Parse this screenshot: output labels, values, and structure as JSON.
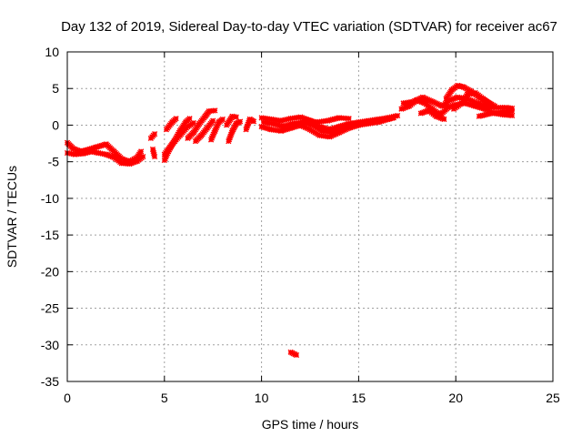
{
  "chart_data": {
    "type": "scatter",
    "title": "Day 132 of 2019, Sidereal Day-to-day VTEC variation (SDTVAR) for receiver ac67",
    "xlabel": "GPS time / hours",
    "ylabel": "SDTVAR / TECUs",
    "xlim": [
      0,
      25
    ],
    "ylim": [
      -35,
      10
    ],
    "xticks": [
      0,
      5,
      10,
      15,
      20,
      25
    ],
    "yticks": [
      -35,
      -30,
      -25,
      -20,
      -15,
      -10,
      -5,
      0,
      5,
      10
    ],
    "grid": true,
    "marker_color": "#ff0000",
    "series": [
      {
        "name": "SDTVAR",
        "color": "#ff0000",
        "tracks": [
          [
            [
              0.0,
              -2.4
            ],
            [
              0.3,
              -3.2
            ],
            [
              0.7,
              -3.6
            ],
            [
              1.0,
              -3.4
            ],
            [
              1.5,
              -3.0
            ],
            [
              2.0,
              -2.6
            ],
            [
              2.4,
              -3.6
            ],
            [
              2.8,
              -4.6
            ],
            [
              3.2,
              -5.0
            ],
            [
              3.6,
              -4.4
            ],
            [
              3.8,
              -3.6
            ]
          ],
          [
            [
              0.0,
              -3.8
            ],
            [
              0.4,
              -4.0
            ],
            [
              0.8,
              -3.9
            ],
            [
              1.2,
              -3.6
            ],
            [
              1.6,
              -3.8
            ],
            [
              2.0,
              -4.0
            ],
            [
              2.4,
              -4.4
            ],
            [
              2.8,
              -5.2
            ],
            [
              3.2,
              -5.3
            ],
            [
              3.6,
              -4.9
            ],
            [
              3.9,
              -4.3
            ]
          ],
          [
            [
              4.3,
              -1.8
            ],
            [
              4.5,
              -1.2
            ]
          ],
          [
            [
              4.4,
              -3.3
            ],
            [
              4.5,
              -4.3
            ]
          ],
          [
            [
              5.0,
              -4.8
            ],
            [
              5.2,
              -3.6
            ],
            [
              5.5,
              -2.2
            ],
            [
              5.8,
              -0.8
            ],
            [
              6.1,
              0.4
            ],
            [
              6.3,
              0.9
            ]
          ],
          [
            [
              5.0,
              -4.0
            ],
            [
              5.4,
              -2.6
            ],
            [
              5.8,
              -1.4
            ],
            [
              6.2,
              -0.2
            ],
            [
              6.5,
              0.3
            ]
          ],
          [
            [
              5.1,
              -0.6
            ],
            [
              5.4,
              0.4
            ],
            [
              5.6,
              0.9
            ]
          ],
          [
            [
              6.2,
              -1.8
            ],
            [
              6.5,
              -1.0
            ],
            [
              6.8,
              0.2
            ],
            [
              7.1,
              1.2
            ],
            [
              7.3,
              1.9
            ],
            [
              7.6,
              2.0
            ]
          ],
          [
            [
              6.6,
              -2.2
            ],
            [
              6.9,
              -1.4
            ],
            [
              7.2,
              -0.4
            ],
            [
              7.5,
              0.6
            ]
          ],
          [
            [
              7.4,
              -2.0
            ],
            [
              7.6,
              -0.8
            ],
            [
              7.8,
              0.4
            ],
            [
              8.0,
              0.8
            ]
          ],
          [
            [
              8.2,
              0.0
            ],
            [
              8.5,
              1.2
            ],
            [
              8.7,
              1.1
            ]
          ],
          [
            [
              8.3,
              -2.2
            ],
            [
              8.5,
              -0.8
            ],
            [
              8.7,
              0.2
            ],
            [
              8.9,
              0.5
            ]
          ],
          [
            [
              9.2,
              -0.6
            ],
            [
              9.4,
              0.8
            ],
            [
              9.6,
              0.5
            ]
          ],
          [
            [
              10.0,
              1.0
            ],
            [
              10.5,
              0.8
            ],
            [
              11.0,
              0.6
            ],
            [
              11.5,
              0.9
            ],
            [
              12.0,
              1.1
            ],
            [
              12.5,
              0.6
            ],
            [
              13.0,
              -0.2
            ],
            [
              13.5,
              -0.6
            ],
            [
              14.0,
              -0.2
            ],
            [
              14.5,
              0.2
            ],
            [
              15.0,
              0.4
            ],
            [
              15.5,
              0.6
            ],
            [
              16.0,
              0.8
            ],
            [
              16.5,
              1.0
            ],
            [
              17.0,
              1.3
            ]
          ],
          [
            [
              10.0,
              -0.2
            ],
            [
              10.5,
              -0.6
            ],
            [
              11.0,
              -0.8
            ],
            [
              11.5,
              -0.4
            ],
            [
              12.0,
              0.0
            ],
            [
              12.5,
              -0.6
            ],
            [
              13.0,
              -1.4
            ],
            [
              13.5,
              -1.6
            ],
            [
              14.0,
              -1.0
            ],
            [
              14.5,
              -0.4
            ],
            [
              15.0,
              0.0
            ],
            [
              15.5,
              0.2
            ],
            [
              16.0,
              0.4
            ],
            [
              16.5,
              0.8
            ],
            [
              16.8,
              1.0
            ]
          ],
          [
            [
              10.1,
              0.4
            ],
            [
              10.6,
              0.2
            ],
            [
              11.1,
              -0.2
            ],
            [
              11.6,
              0.2
            ],
            [
              12.1,
              0.4
            ],
            [
              12.6,
              0.0
            ],
            [
              13.1,
              -0.8
            ],
            [
              13.6,
              -1.0
            ],
            [
              14.1,
              -0.6
            ],
            [
              14.6,
              0.0
            ],
            [
              15.1,
              0.2
            ]
          ],
          [
            [
              12.2,
              0.8
            ],
            [
              12.8,
              0.4
            ],
            [
              13.4,
              0.6
            ],
            [
              14.0,
              1.0
            ],
            [
              14.5,
              0.9
            ]
          ],
          [
            [
              11.5,
              -31.0
            ],
            [
              11.8,
              -31.4
            ]
          ],
          [
            [
              17.2,
              2.2
            ],
            [
              17.6,
              2.6
            ],
            [
              18.0,
              3.4
            ],
            [
              18.4,
              3.0
            ],
            [
              18.8,
              2.2
            ],
            [
              19.2,
              1.4
            ],
            [
              19.6,
              2.4
            ],
            [
              20.0,
              2.8
            ],
            [
              20.5,
              3.0
            ],
            [
              21.0,
              2.6
            ],
            [
              21.5,
              2.2
            ],
            [
              22.0,
              1.6
            ],
            [
              22.5,
              1.4
            ],
            [
              22.9,
              1.3
            ]
          ],
          [
            [
              17.3,
              3.0
            ],
            [
              17.8,
              3.2
            ],
            [
              18.3,
              3.8
            ],
            [
              18.8,
              3.2
            ],
            [
              19.3,
              2.6
            ],
            [
              19.7,
              3.4
            ],
            [
              20.1,
              3.8
            ],
            [
              20.6,
              3.6
            ],
            [
              21.1,
              3.0
            ],
            [
              21.6,
              2.6
            ],
            [
              22.1,
              2.4
            ],
            [
              22.6,
              2.4
            ],
            [
              22.9,
              2.3
            ]
          ],
          [
            [
              19.5,
              3.6
            ],
            [
              19.8,
              4.8
            ],
            [
              20.1,
              5.4
            ],
            [
              20.4,
              5.2
            ],
            [
              20.8,
              4.6
            ],
            [
              21.2,
              3.8
            ],
            [
              21.6,
              3.2
            ],
            [
              22.0,
              2.6
            ]
          ],
          [
            [
              19.9,
              2.2
            ],
            [
              20.3,
              3.0
            ],
            [
              20.6,
              4.2
            ],
            [
              21.0,
              4.4
            ],
            [
              21.4,
              3.6
            ],
            [
              21.8,
              2.8
            ]
          ],
          [
            [
              18.2,
              1.6
            ],
            [
              18.6,
              2.0
            ],
            [
              19.0,
              1.2
            ],
            [
              19.4,
              0.8
            ]
          ],
          [
            [
              21.2,
              1.2
            ],
            [
              21.8,
              1.6
            ],
            [
              22.4,
              1.8
            ],
            [
              22.9,
              1.9
            ]
          ]
        ]
      }
    ]
  }
}
